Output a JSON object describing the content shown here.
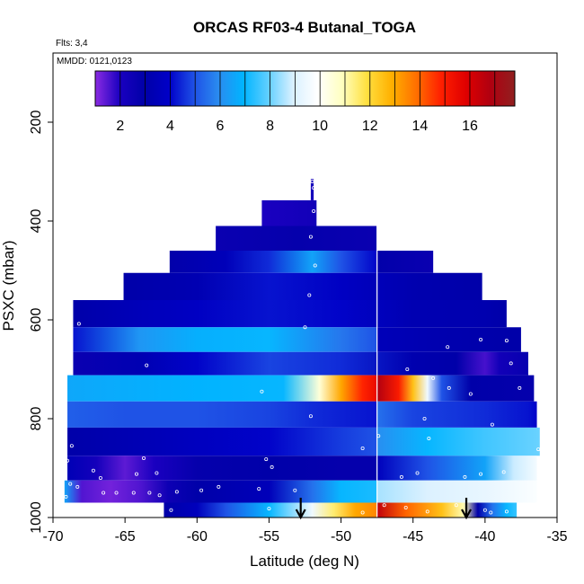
{
  "chart_data": {
    "type": "heatmap",
    "title": "ORCAS RF03-4 Butanal_TOGA",
    "annotations": {
      "flights": "Flts: 3,4",
      "dates": "MMDD: 0121,0123"
    },
    "xlabel": "Latitude (deg N)",
    "ylabel": "PSXC (mbar)",
    "xlim": [
      -70,
      -35
    ],
    "ylim": [
      1000,
      60
    ],
    "y_inverted": true,
    "xticks": [
      -70,
      -65,
      -60,
      -55,
      -50,
      -45,
      -40,
      -35
    ],
    "yticks": [
      200,
      400,
      600,
      800,
      1000
    ],
    "colorbar": {
      "range": [
        1.0,
        17.8
      ],
      "ticks": [
        2,
        4,
        6,
        8,
        10,
        12,
        14,
        16
      ],
      "colors": [
        "#8a2be2",
        "#1a00c0",
        "#0000a8",
        "#0000c8",
        "#1e50e6",
        "#2a8cf0",
        "#00b4ff",
        "#60cfff",
        "#d8f0ff",
        "#ffffff",
        "#ffffc0",
        "#ffe040",
        "#ffb000",
        "#ff7000",
        "#ff2000",
        "#e00000",
        "#b00010",
        "#902020"
      ]
    },
    "vertical_line_x": -47.5,
    "arrows_x": [
      -52.8,
      -41.3
    ],
    "rows": [
      {
        "p_top": 315,
        "p_bot": 358,
        "x0": -52.1,
        "x1": -51.9,
        "stops": [
          [
            -52.1,
            2.2
          ],
          [
            -51.9,
            2.2
          ]
        ]
      },
      {
        "p_top": 358,
        "p_bot": 410,
        "x0": -55.5,
        "x1": -51.7,
        "stops": [
          [
            -55.5,
            2.0
          ],
          [
            -51.7,
            2.3
          ]
        ]
      },
      {
        "p_top": 410,
        "p_bot": 460,
        "x0": -58.7,
        "x1": -47.5,
        "stops": [
          [
            -58.7,
            2.6
          ],
          [
            -53,
            2.8
          ],
          [
            -47.5,
            2.6
          ]
        ]
      },
      {
        "p_top": 460,
        "p_bot": 505,
        "x0": -61.9,
        "x1": -43.6,
        "stops": [
          [
            -61.9,
            2.9
          ],
          [
            -58,
            3.5
          ],
          [
            -55,
            4.5
          ],
          [
            -52,
            6.5
          ],
          [
            -50,
            5.0
          ],
          [
            -47.5,
            4.0
          ],
          [
            -47.5,
            2.9
          ],
          [
            -43.6,
            2.6
          ]
        ]
      },
      {
        "p_top": 505,
        "p_bot": 560,
        "x0": -65.1,
        "x1": -40.2,
        "stops": [
          [
            -65.1,
            3.0
          ],
          [
            -60,
            3.3
          ],
          [
            -55,
            4.2
          ],
          [
            -50,
            3.8
          ],
          [
            -45,
            3.2
          ],
          [
            -40.2,
            3.0
          ]
        ]
      },
      {
        "p_top": 560,
        "p_bot": 615,
        "x0": -68.6,
        "x1": -38.5,
        "stops": [
          [
            -68.6,
            3.0
          ],
          [
            -64,
            3.5
          ],
          [
            -60,
            3.8
          ],
          [
            -55,
            4.2
          ],
          [
            -50,
            4.0
          ],
          [
            -45,
            3.3
          ],
          [
            -40,
            3.2
          ],
          [
            -38.5,
            3.0
          ]
        ]
      },
      {
        "p_top": 615,
        "p_bot": 665,
        "x0": -68.6,
        "x1": -37.5,
        "stops": [
          [
            -68.6,
            4.2
          ],
          [
            -64,
            6.2
          ],
          [
            -60,
            6.8
          ],
          [
            -55,
            7.0
          ],
          [
            -50,
            5.6
          ],
          [
            -47.5,
            5.0
          ],
          [
            -47.5,
            3.5
          ],
          [
            -43,
            3.2
          ],
          [
            -38,
            3.0
          ]
        ]
      },
      {
        "p_top": 665,
        "p_bot": 712,
        "x0": -68.6,
        "x1": -37.0,
        "stops": [
          [
            -68.6,
            2.6
          ],
          [
            -64,
            3.3
          ],
          [
            -60,
            4.0
          ],
          [
            -55,
            4.8
          ],
          [
            -50,
            4.5
          ],
          [
            -45,
            3.2
          ],
          [
            -42,
            3.0
          ],
          [
            -40,
            1.6
          ],
          [
            -39,
            2.3
          ],
          [
            -37,
            2.7
          ]
        ]
      },
      {
        "p_top": 712,
        "p_bot": 765,
        "x0": -69.0,
        "x1": -36.6,
        "stops": [
          [
            -69.0,
            6.6
          ],
          [
            -60,
            6.9
          ],
          [
            -54,
            7.0
          ],
          [
            -51.5,
            10.5
          ],
          [
            -50,
            13.0
          ],
          [
            -48.5,
            14.8
          ],
          [
            -47.5,
            15.5
          ],
          [
            -47.5,
            16.8
          ],
          [
            -46,
            15.0
          ],
          [
            -45,
            12.5
          ],
          [
            -44,
            9.5
          ],
          [
            -43,
            5.0
          ],
          [
            -41,
            3.0
          ],
          [
            -36.6,
            2.8
          ]
        ]
      },
      {
        "p_top": 765,
        "p_bot": 818,
        "x0": -69.0,
        "x1": -36.4,
        "stops": [
          [
            -69.0,
            5.2
          ],
          [
            -65,
            5.0
          ],
          [
            -60,
            5.0
          ],
          [
            -55,
            4.8
          ],
          [
            -52,
            4.5
          ],
          [
            -49,
            4.3
          ],
          [
            -47.5,
            4.2
          ],
          [
            -47.5,
            5.5
          ],
          [
            -45,
            4.8
          ],
          [
            -40,
            4.5
          ],
          [
            -37,
            4.2
          ],
          [
            -36.4,
            4.0
          ]
        ]
      },
      {
        "p_top": 818,
        "p_bot": 875,
        "x0": -69.0,
        "x1": -36.2,
        "stops": [
          [
            -69.0,
            3.0
          ],
          [
            -65,
            3.3
          ],
          [
            -60,
            3.7
          ],
          [
            -55,
            4.0
          ],
          [
            -50,
            4.7
          ],
          [
            -47.5,
            5.0
          ],
          [
            -47.5,
            6.0
          ],
          [
            -44,
            7.0
          ],
          [
            -40,
            7.6
          ],
          [
            -36.2,
            8.0
          ]
        ]
      },
      {
        "p_top": 875,
        "p_bot": 925,
        "x0": -69.0,
        "x1": -36.4,
        "stops": [
          [
            -69.0,
            3.4
          ],
          [
            -67,
            2.2
          ],
          [
            -65,
            1.4
          ],
          [
            -63,
            2.0
          ],
          [
            -60,
            2.8
          ],
          [
            -55,
            3.0
          ],
          [
            -50,
            2.8
          ],
          [
            -47.5,
            2.8
          ],
          [
            -47.5,
            3.6
          ],
          [
            -44,
            5.0
          ],
          [
            -40,
            6.5
          ],
          [
            -38,
            8.8
          ],
          [
            -36.4,
            9.6
          ]
        ]
      },
      {
        "p_top": 925,
        "p_bot": 970,
        "x0": -69.2,
        "x1": -36.4,
        "stops": [
          [
            -69.2,
            6.5
          ],
          [
            -68,
            1.5
          ],
          [
            -66,
            1.2
          ],
          [
            -64,
            1.5
          ],
          [
            -62,
            2.5
          ],
          [
            -60,
            3.0
          ],
          [
            -55,
            3.5
          ],
          [
            -52,
            5.5
          ],
          [
            -50,
            7.0
          ],
          [
            -47.5,
            7.2
          ],
          [
            -47.5,
            8.5
          ],
          [
            -44,
            9.0
          ],
          [
            -40,
            9.3
          ],
          [
            -36.4,
            9.8
          ]
        ]
      },
      {
        "p_top": 970,
        "p_bot": 1000,
        "x0": -62.3,
        "x1": -37.8,
        "stops": [
          [
            -62.3,
            3.0
          ],
          [
            -60,
            3.6
          ],
          [
            -58,
            5.0
          ],
          [
            -55,
            7.0
          ],
          [
            -53,
            8.5
          ],
          [
            -52,
            9.5
          ],
          [
            -50.5,
            11.5
          ],
          [
            -49,
            13.0
          ],
          [
            -47.5,
            13.5
          ],
          [
            -47.5,
            16.5
          ],
          [
            -45.5,
            14.0
          ],
          [
            -43,
            12.5
          ],
          [
            -41.5,
            11.0
          ],
          [
            -40.5,
            3.0
          ],
          [
            -39.5,
            5.5
          ],
          [
            -38.5,
            7.0
          ],
          [
            -37.8,
            7.5
          ]
        ]
      }
    ],
    "samples": [
      [
        -52.0,
        320
      ],
      [
        -51.9,
        333
      ],
      [
        -51.9,
        380
      ],
      [
        -52.1,
        432
      ],
      [
        -51.8,
        490
      ],
      [
        -52.2,
        550
      ],
      [
        -52.5,
        615
      ],
      [
        -68.2,
        608
      ],
      [
        -42.6,
        655
      ],
      [
        -40.3,
        640
      ],
      [
        -38.5,
        642
      ],
      [
        -63.5,
        692
      ],
      [
        -45.4,
        700
      ],
      [
        -38.2,
        688
      ],
      [
        -43.6,
        718
      ],
      [
        -42.5,
        738
      ],
      [
        -41.0,
        750
      ],
      [
        -37.6,
        738
      ],
      [
        -55.5,
        745
      ],
      [
        -52.1,
        795
      ],
      [
        -44.2,
        800
      ],
      [
        -47.4,
        835
      ],
      [
        -43.9,
        840
      ],
      [
        -39.5,
        812
      ],
      [
        -48.5,
        860
      ],
      [
        -36.3,
        862
      ],
      [
        -68.7,
        855
      ],
      [
        -69.0,
        885
      ],
      [
        -63.7,
        880
      ],
      [
        -67.2,
        905
      ],
      [
        -66.7,
        920
      ],
      [
        -64.2,
        912
      ],
      [
        -62.8,
        910
      ],
      [
        -55.2,
        882
      ],
      [
        -54.8,
        898
      ],
      [
        -41.4,
        918
      ],
      [
        -40.3,
        912
      ],
      [
        -45.8,
        918
      ],
      [
        -44.7,
        910
      ],
      [
        -38.7,
        908
      ],
      [
        -68.8,
        932
      ],
      [
        -68.3,
        938
      ],
      [
        -66.5,
        950
      ],
      [
        -65.6,
        950
      ],
      [
        -64.4,
        950
      ],
      [
        -63.3,
        950
      ],
      [
        -62.6,
        955
      ],
      [
        -61.4,
        948
      ],
      [
        -59.7,
        945
      ],
      [
        -58.5,
        938
      ],
      [
        -55.7,
        942
      ],
      [
        -53.2,
        945
      ],
      [
        -69.1,
        958
      ],
      [
        -62.5,
        975
      ],
      [
        -61.8,
        985
      ],
      [
        -55.0,
        982
      ],
      [
        -48.5,
        990
      ],
      [
        -47.0,
        975
      ],
      [
        -45.5,
        980
      ],
      [
        -44.0,
        988
      ],
      [
        -42.0,
        975
      ],
      [
        -40.0,
        985
      ],
      [
        -39.6,
        990
      ],
      [
        -38.5,
        988
      ]
    ]
  }
}
